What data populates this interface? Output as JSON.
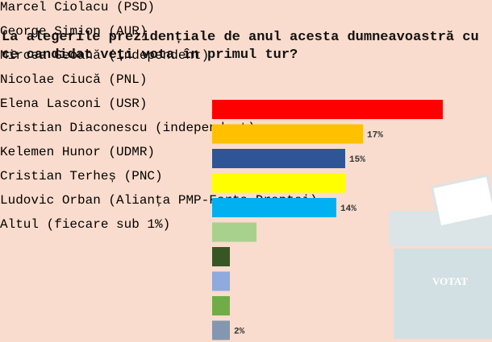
{
  "chart_data": {
    "type": "bar",
    "orientation": "horizontal",
    "title": "La alegerile prezidențiale de anul acesta dumneavoastră cu ce candidat veți vota în primul tur?",
    "annotation": "VOTAT",
    "categories": [
      "Marcel Ciolacu (PSD)",
      "George Simion (AUR)",
      "Mircea Geoană (independent)",
      "Nicolae Ciucă (PNL)",
      "Elena Lasconi (USR)",
      "Cristian Diaconescu (independent)",
      "Kelemen Hunor (UDMR)",
      "Cristian Terheș (PNC)",
      "Ludovic Orban (Alianța PMP-Forța Dreptei)",
      "Altul (fiecare sub 1%)"
    ],
    "values": [
      26,
      17,
      15,
      15,
      14,
      5,
      2,
      2,
      2,
      2
    ],
    "value_labels": [
      null,
      "17%",
      "15%",
      null,
      "14%",
      null,
      null,
      null,
      null,
      "2%"
    ],
    "colors": [
      "#ff0000",
      "#ffc000",
      "#2f5597",
      "#ffff00",
      "#00b0f0",
      "#a9d18e",
      "#375623",
      "#8faadc",
      "#70ad47",
      "#8497b0"
    ]
  }
}
